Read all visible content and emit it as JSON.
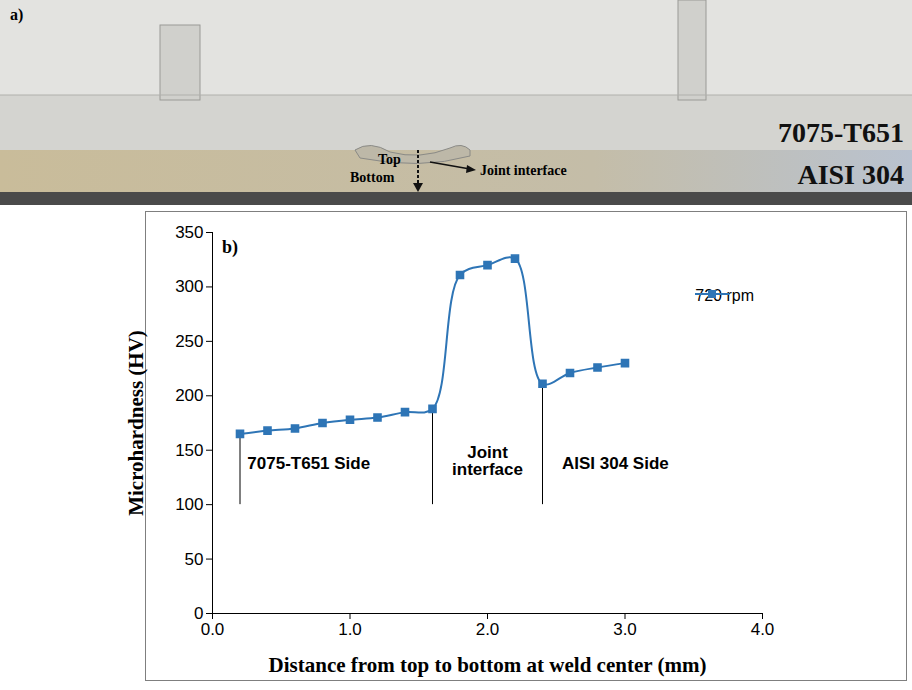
{
  "figure_a": {
    "panel_label": "a)",
    "top": "Top",
    "bottom": "Bottom",
    "joint_interface": "Joint interface",
    "upper_material": "7075-T651",
    "lower_material": "AISI 304"
  },
  "chart_data": {
    "type": "line",
    "panel_label": "b)",
    "x_label": "Distance from top to bottom at weld center (mm)",
    "y_label": "Microhardness (HV)",
    "x": [
      0.2,
      0.4,
      0.6,
      0.8,
      1.0,
      1.2,
      1.4,
      1.6,
      1.8,
      2.0,
      2.2,
      2.4,
      2.6,
      2.8,
      3.0
    ],
    "series": [
      {
        "name": "720 rpm",
        "color": "#2e75b6",
        "marker": "square",
        "line_style": "smooth",
        "values": [
          165,
          168,
          170,
          175,
          178,
          180,
          185,
          188,
          311,
          320,
          326,
          211,
          221,
          226,
          230
        ]
      }
    ],
    "xlim": [
      0,
      4
    ],
    "xticks": [
      0,
      1,
      2,
      3,
      4
    ],
    "ylim": [
      0,
      350
    ],
    "yticks": [
      0,
      50,
      100,
      150,
      200,
      250,
      300,
      350
    ],
    "grid": false,
    "legend": "upper right",
    "marker_lines": [
      {
        "x": 0.2,
        "y": [
          100,
          165
        ]
      },
      {
        "x": 1.6,
        "y": [
          100,
          188
        ]
      },
      {
        "x": 2.4,
        "y": [
          100,
          211
        ]
      }
    ],
    "annotations": [
      {
        "text": "7075-T651 Side",
        "x": 0.7,
        "y": 138
      },
      {
        "text": "Joint interface",
        "x": 2.0,
        "y": 140
      },
      {
        "text": "AISI 304 Side",
        "x": 2.93,
        "y": 138
      }
    ]
  }
}
